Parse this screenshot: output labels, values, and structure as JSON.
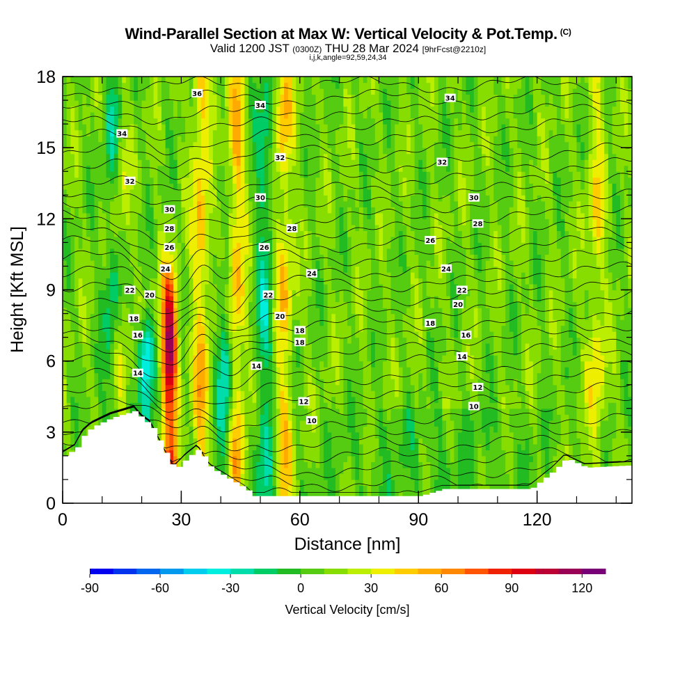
{
  "header": {
    "title": "Wind-Parallel Section at Max W: Vertical Velocity & Pot.Temp.",
    "copyright": "(C)",
    "valid_main": "Valid 1200 JST",
    "valid_zulu": "(0300Z)",
    "valid_date": "THU 28 Mar 2024",
    "valid_fcst": "[9hrFcst@2210z]",
    "ijk": "i,j,k,angle=92,59,24,34"
  },
  "chart_data": {
    "type": "heatmap",
    "xlabel": "Distance [nm]",
    "ylabel": "Height [Kft MSL]",
    "xlim": [
      0,
      144
    ],
    "ylim": [
      0,
      18
    ],
    "x_ticks": [
      0,
      30,
      60,
      90,
      120
    ],
    "y_ticks": [
      0,
      3,
      6,
      9,
      12,
      15,
      18
    ],
    "colorbar": {
      "label": "Vertical Velocity [cm/s]",
      "min": -90,
      "max": 130,
      "step": 10,
      "ticks": [
        -90,
        -60,
        -30,
        0,
        30,
        60,
        90,
        120
      ],
      "colors": [
        "#0000ee",
        "#0033ee",
        "#0066ee",
        "#0099ee",
        "#00ccee",
        "#00eedd",
        "#00ddaa",
        "#00cc66",
        "#22bb22",
        "#55cc11",
        "#88dd00",
        "#bbee00",
        "#eeee00",
        "#ffcc00",
        "#ffaa00",
        "#ff8800",
        "#ff5500",
        "#ee2200",
        "#dd0011",
        "#bb0033",
        "#990055",
        "#770077"
      ]
    },
    "updraft_bands": [
      {
        "x": 14,
        "w": 40,
        "z_top": 18
      },
      {
        "x": 27,
        "w": 110,
        "z_top": 9
      },
      {
        "x": 35,
        "w": 45,
        "z_top": 18
      },
      {
        "x": 44,
        "w": 45,
        "z_top": 18
      },
      {
        "x": 56,
        "w": 40,
        "z_top": 18
      },
      {
        "x": 135,
        "w": 30,
        "z_top": 18
      }
    ],
    "downdraft_bands": [
      {
        "x": 13,
        "w": -50,
        "z_top": 18
      },
      {
        "x": 21,
        "w": -55,
        "z_top": 6.5
      },
      {
        "x": 41,
        "w": -45,
        "z_top": 9
      },
      {
        "x": 51,
        "w": -35,
        "z_top": 18
      }
    ],
    "terrain": [
      {
        "x": 0,
        "z": 2.0
      },
      {
        "x": 3,
        "z": 2.3
      },
      {
        "x": 5,
        "z": 2.9
      },
      {
        "x": 7,
        "z": 3.2
      },
      {
        "x": 12,
        "z": 3.6
      },
      {
        "x": 18,
        "z": 3.9
      },
      {
        "x": 20,
        "z": 3.5
      },
      {
        "x": 22,
        "z": 3.3
      },
      {
        "x": 26,
        "z": 2.0
      },
      {
        "x": 28,
        "z": 1.4
      },
      {
        "x": 31,
        "z": 1.9
      },
      {
        "x": 34,
        "z": 2.3
      },
      {
        "x": 37,
        "z": 1.5
      },
      {
        "x": 42,
        "z": 1.0
      },
      {
        "x": 46,
        "z": 0.6
      },
      {
        "x": 48,
        "z": 0.3
      },
      {
        "x": 90,
        "z": 0.3
      },
      {
        "x": 96,
        "z": 0.6
      },
      {
        "x": 118,
        "z": 0.6
      },
      {
        "x": 121,
        "z": 1.0
      },
      {
        "x": 124,
        "z": 1.4
      },
      {
        "x": 127,
        "z": 1.9
      },
      {
        "x": 132,
        "z": 1.5
      },
      {
        "x": 144,
        "z": 1.6
      }
    ],
    "theta_labels": [
      {
        "text": "36",
        "x": 34,
        "z": 17.3
      },
      {
        "text": "34",
        "x": 15,
        "z": 15.6
      },
      {
        "text": "34",
        "x": 50,
        "z": 16.8
      },
      {
        "text": "34",
        "x": 98,
        "z": 17.1
      },
      {
        "text": "32",
        "x": 17,
        "z": 13.6
      },
      {
        "text": "32",
        "x": 55,
        "z": 14.6
      },
      {
        "text": "32",
        "x": 96,
        "z": 14.4
      },
      {
        "text": "30",
        "x": 27,
        "z": 12.4
      },
      {
        "text": "30",
        "x": 50,
        "z": 12.9
      },
      {
        "text": "30",
        "x": 104,
        "z": 12.9
      },
      {
        "text": "28",
        "x": 27,
        "z": 11.6
      },
      {
        "text": "28",
        "x": 58,
        "z": 11.6
      },
      {
        "text": "28",
        "x": 105,
        "z": 11.8
      },
      {
        "text": "26",
        "x": 27,
        "z": 10.8
      },
      {
        "text": "26",
        "x": 51,
        "z": 10.8
      },
      {
        "text": "26",
        "x": 93,
        "z": 11.1
      },
      {
        "text": "24",
        "x": 26,
        "z": 9.9
      },
      {
        "text": "24",
        "x": 63,
        "z": 9.7
      },
      {
        "text": "24",
        "x": 97,
        "z": 9.9
      },
      {
        "text": "22",
        "x": 17,
        "z": 9.0
      },
      {
        "text": "22",
        "x": 52,
        "z": 8.8
      },
      {
        "text": "22",
        "x": 101,
        "z": 9.0
      },
      {
        "text": "20",
        "x": 22,
        "z": 8.8
      },
      {
        "text": "20",
        "x": 55,
        "z": 7.9
      },
      {
        "text": "20",
        "x": 100,
        "z": 8.4
      },
      {
        "text": "18",
        "x": 18,
        "z": 7.8
      },
      {
        "text": "18",
        "x": 60,
        "z": 7.3
      },
      {
        "text": "18",
        "x": 60,
        "z": 6.8
      },
      {
        "text": "18",
        "x": 93,
        "z": 7.6
      },
      {
        "text": "16",
        "x": 19,
        "z": 7.1
      },
      {
        "text": "16",
        "x": 102,
        "z": 7.1
      },
      {
        "text": "14",
        "x": 19,
        "z": 5.5
      },
      {
        "text": "14",
        "x": 49,
        "z": 5.8
      },
      {
        "text": "14",
        "x": 101,
        "z": 6.2
      },
      {
        "text": "12",
        "x": 61,
        "z": 4.3
      },
      {
        "text": "12",
        "x": 105,
        "z": 4.9
      },
      {
        "text": "10",
        "x": 63,
        "z": 3.5
      },
      {
        "text": "10",
        "x": 104,
        "z": 4.1
      }
    ]
  }
}
